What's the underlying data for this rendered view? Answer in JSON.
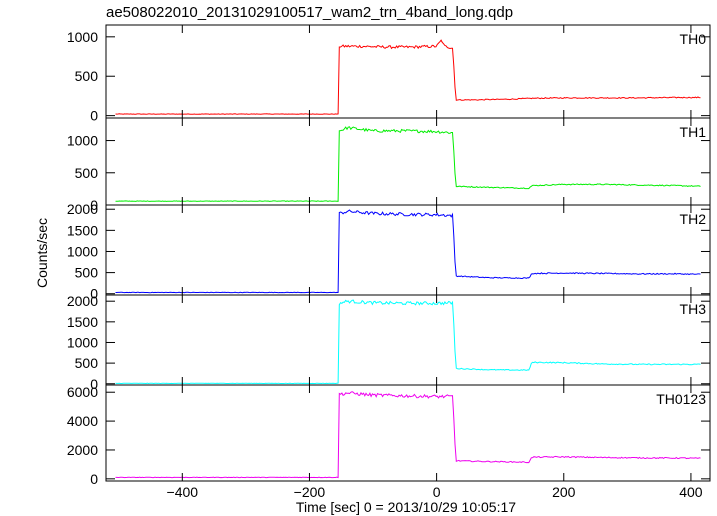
{
  "title": "ae508022010_20131029100517_wam2_trn_4band_long.qdp",
  "chart_data": {
    "type": "line",
    "xlabel": "Time [sec] 0 = 2013/10/29 10:05:17",
    "ylabel": "Counts/sec",
    "xlim": [
      -520,
      430
    ],
    "xticks": [
      -400,
      -200,
      0,
      200,
      400
    ],
    "x_tick_labels": [
      "−400",
      "−200",
      "0",
      "200",
      "400"
    ],
    "panels": [
      {
        "name": "TH0",
        "color": "#ff0000",
        "ylim": [
          -30,
          1150
        ],
        "yticks": [
          0,
          500,
          1000
        ],
        "y_tick_labels": [
          "0",
          "500",
          "1000"
        ],
        "x": [
          -505,
          -155,
          -153,
          -120,
          -80,
          -40,
          0,
          8,
          12,
          25,
          28,
          30,
          60,
          120,
          150,
          200,
          260,
          320,
          380,
          415
        ],
        "y": [
          20,
          20,
          880,
          880,
          870,
          870,
          880,
          960,
          880,
          860,
          520,
          200,
          200,
          210,
          220,
          225,
          225,
          225,
          230,
          230
        ]
      },
      {
        "name": "TH1",
        "color": "#00ee00",
        "ylim": [
          0,
          1350
        ],
        "yticks": [
          0,
          500,
          1000
        ],
        "y_tick_labels": [
          "0",
          "500",
          "1000"
        ],
        "x": [
          -505,
          -155,
          -153,
          -140,
          -100,
          -50,
          0,
          25,
          28,
          30,
          60,
          100,
          145,
          150,
          200,
          260,
          320,
          380,
          415
        ],
        "y": [
          60,
          60,
          1150,
          1200,
          1150,
          1150,
          1140,
          1120,
          700,
          290,
          280,
          270,
          260,
          300,
          320,
          320,
          310,
          300,
          290
        ]
      },
      {
        "name": "TH2",
        "color": "#0000ff",
        "ylim": [
          -30,
          2100
        ],
        "yticks": [
          0,
          500,
          1000,
          1500,
          2000
        ],
        "y_tick_labels": [
          "0",
          "500",
          "1000",
          "1500",
          "2000"
        ],
        "x": [
          -505,
          -155,
          -153,
          -140,
          -100,
          -50,
          0,
          25,
          28,
          30,
          80,
          145,
          150,
          200,
          260,
          320,
          380,
          415
        ],
        "y": [
          30,
          30,
          1900,
          1950,
          1900,
          1880,
          1870,
          1850,
          1100,
          420,
          380,
          370,
          480,
          490,
          480,
          470,
          470,
          460
        ]
      },
      {
        "name": "TH3",
        "color": "#00ffff",
        "ylim": [
          -30,
          2150
        ],
        "yticks": [
          0,
          500,
          1000,
          1500,
          2000
        ],
        "y_tick_labels": [
          "0",
          "500",
          "1000",
          "1500",
          "2000"
        ],
        "x": [
          -505,
          -155,
          -153,
          -140,
          -100,
          -50,
          0,
          25,
          28,
          30,
          80,
          145,
          150,
          200,
          260,
          320,
          380,
          415
        ],
        "y": [
          10,
          10,
          1950,
          2000,
          1960,
          1950,
          1950,
          1960,
          1200,
          370,
          340,
          330,
          520,
          510,
          480,
          470,
          470,
          470
        ]
      },
      {
        "name": "TH0123",
        "color": "#ee00ee",
        "ylim": [
          -150,
          6500
        ],
        "yticks": [
          0,
          2000,
          4000,
          6000
        ],
        "y_tick_labels": [
          "0",
          "2000",
          "4000",
          "6000"
        ],
        "x": [
          -505,
          -155,
          -153,
          -140,
          -100,
          -50,
          0,
          25,
          28,
          30,
          80,
          145,
          150,
          200,
          260,
          320,
          380,
          415
        ],
        "y": [
          100,
          100,
          5850,
          5950,
          5800,
          5750,
          5700,
          5700,
          3500,
          1250,
          1200,
          1150,
          1500,
          1520,
          1480,
          1450,
          1440,
          1420
        ]
      }
    ]
  }
}
